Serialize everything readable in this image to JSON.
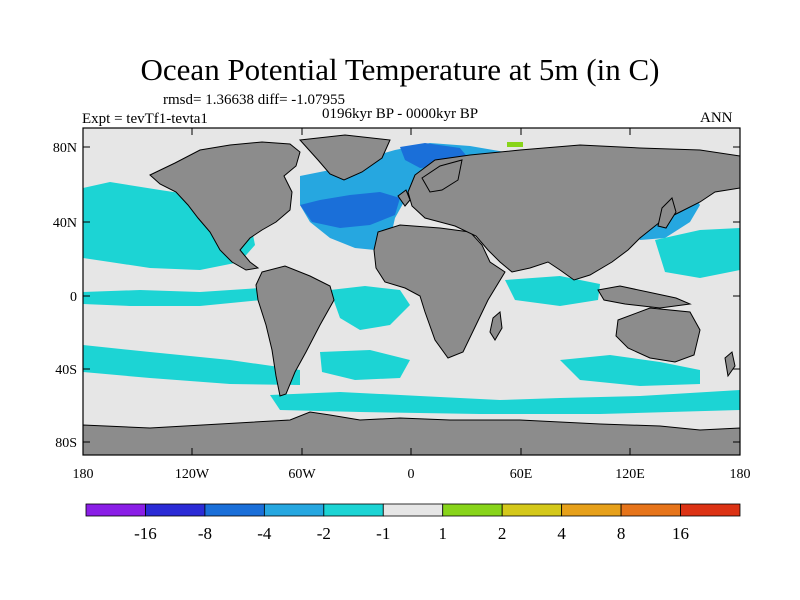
{
  "title": "Ocean Potential Temperature at 5m (in C)",
  "stats": "rmsd= 1.36638 diff= -1.07955",
  "period": "0196kyr BP - 0000kyr BP",
  "experiment": "Expt = tevTf1-tevta1",
  "season": "ANN",
  "lat_ticks": [
    "80N",
    "40N",
    "0",
    "40S",
    "80S"
  ],
  "lon_ticks": [
    "180",
    "120W",
    "60W",
    "0",
    "60E",
    "120E",
    "180"
  ],
  "colorbar": {
    "colors": [
      "#8a1ee6",
      "#2b2bd6",
      "#1a6fd9",
      "#26a7e0",
      "#1cd4d4",
      "#e6e6e6",
      "#88d41a",
      "#d4c81a",
      "#e6a01a",
      "#e6741a",
      "#dc3214"
    ],
    "labels": [
      "-16",
      "-8",
      "-4",
      "-2",
      "-1",
      "1",
      "2",
      "4",
      "8",
      "16"
    ]
  },
  "map_colors": {
    "land": "#8c8c8c",
    "background": "#e6e6e6"
  }
}
